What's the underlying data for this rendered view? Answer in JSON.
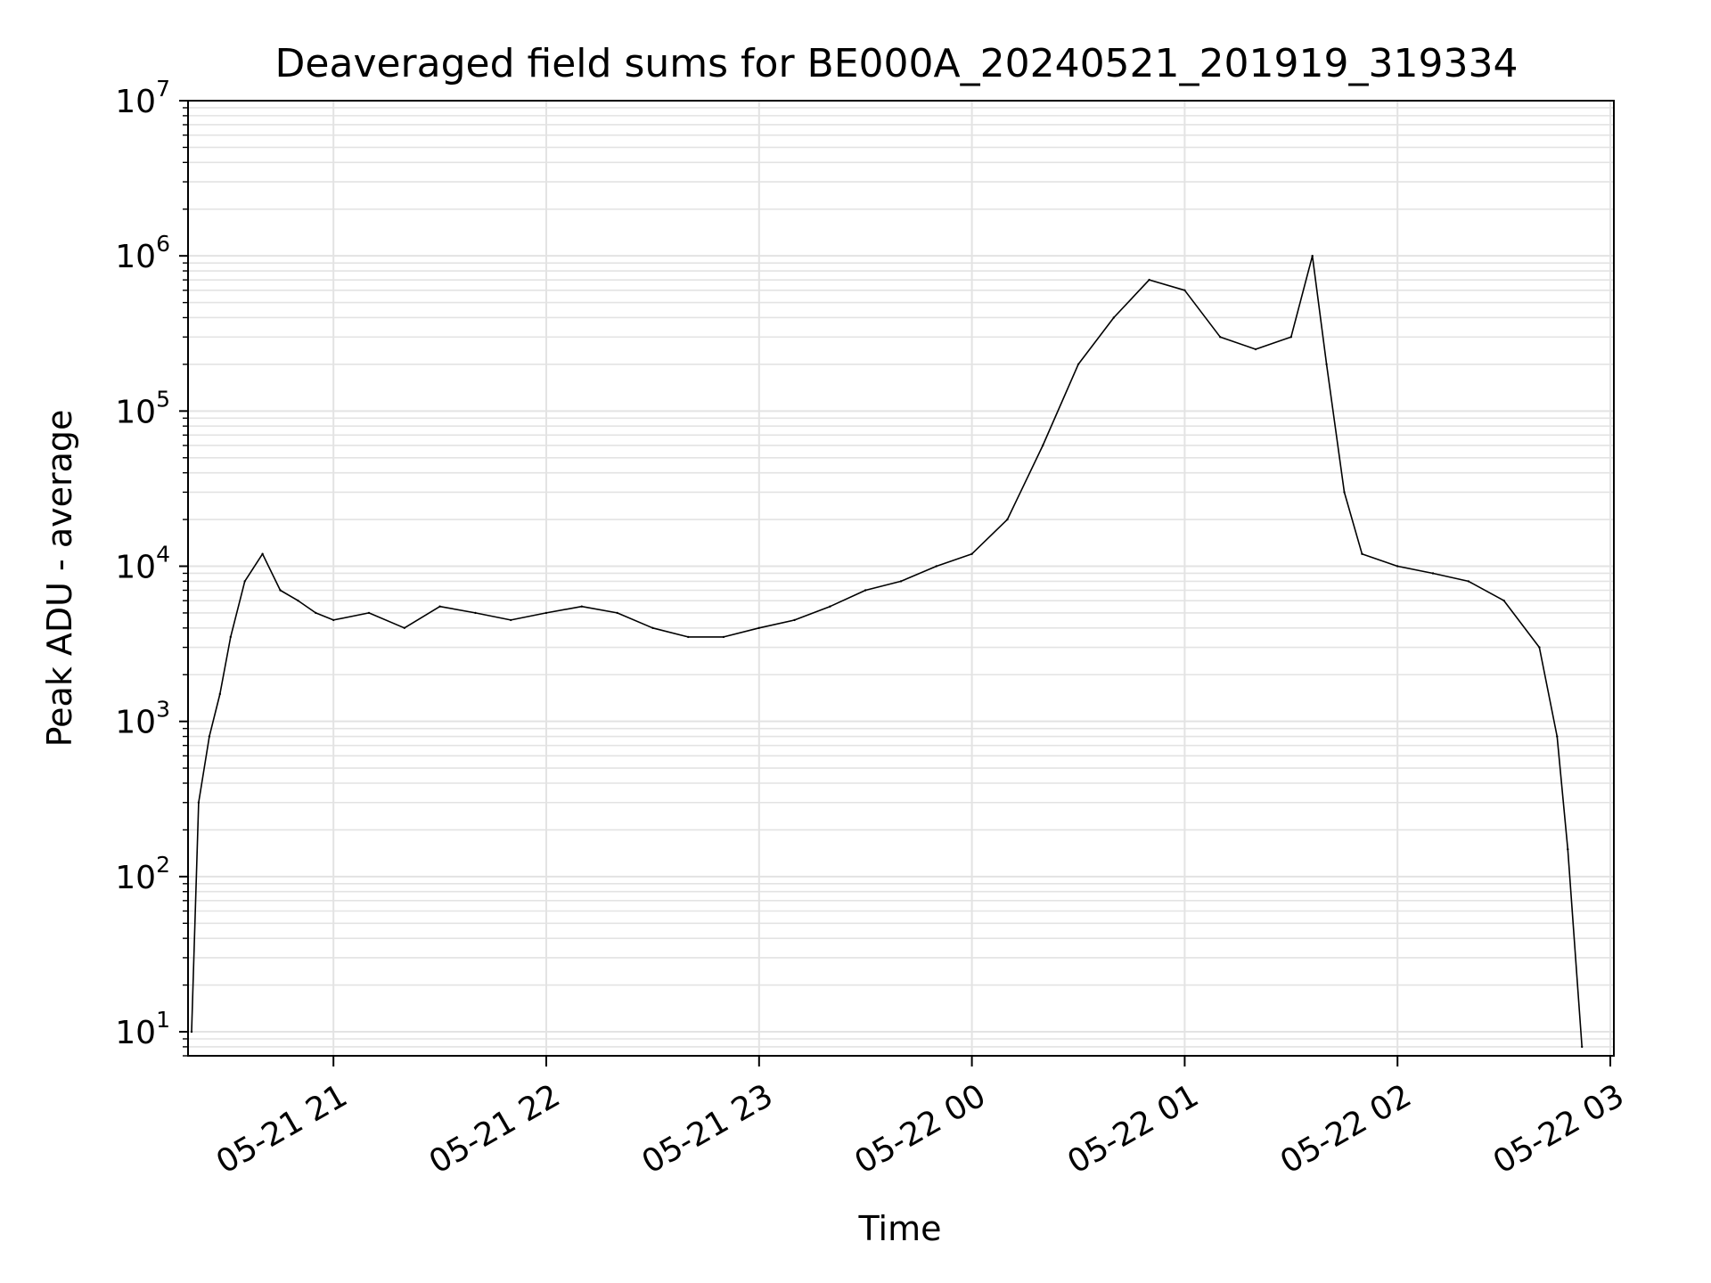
{
  "chart_data": {
    "type": "line",
    "title": "Deaveraged field sums for BE000A_20240521_201919_319334",
    "xlabel": "Time",
    "ylabel": "Peak ADU - average",
    "y_scale": "log",
    "ylim": [
      7,
      10000000
    ],
    "xlim": [
      "2024-05-21 20:19",
      "2024-05-22 03:01"
    ],
    "grid": true,
    "line_color": "#000000",
    "x_ticks": [
      "05-21 21",
      "05-21 22",
      "05-21 23",
      "05-22 00",
      "05-22 01",
      "05-22 02",
      "05-22 03"
    ],
    "y_ticks": [
      {
        "base": "10",
        "exp": "1"
      },
      {
        "base": "10",
        "exp": "2"
      },
      {
        "base": "10",
        "exp": "3"
      },
      {
        "base": "10",
        "exp": "4"
      },
      {
        "base": "10",
        "exp": "5"
      },
      {
        "base": "10",
        "exp": "6"
      },
      {
        "base": "10",
        "exp": "7"
      }
    ],
    "series": [
      {
        "points": [
          [
            "2024-05-21 20:20",
            10
          ],
          [
            "2024-05-21 20:22",
            300
          ],
          [
            "2024-05-21 20:25",
            800
          ],
          [
            "2024-05-21 20:28",
            1500
          ],
          [
            "2024-05-21 20:31",
            3500
          ],
          [
            "2024-05-21 20:35",
            8000
          ],
          [
            "2024-05-21 20:40",
            12000
          ],
          [
            "2024-05-21 20:45",
            7000
          ],
          [
            "2024-05-21 20:50",
            6000
          ],
          [
            "2024-05-21 20:55",
            5000
          ],
          [
            "2024-05-21 21:00",
            4500
          ],
          [
            "2024-05-21 21:10",
            5000
          ],
          [
            "2024-05-21 21:20",
            4000
          ],
          [
            "2024-05-21 21:30",
            5500
          ],
          [
            "2024-05-21 21:40",
            5000
          ],
          [
            "2024-05-21 21:50",
            4500
          ],
          [
            "2024-05-21 22:00",
            5000
          ],
          [
            "2024-05-21 22:10",
            5500
          ],
          [
            "2024-05-21 22:20",
            5000
          ],
          [
            "2024-05-21 22:30",
            4000
          ],
          [
            "2024-05-21 22:40",
            3500
          ],
          [
            "2024-05-21 22:50",
            3500
          ],
          [
            "2024-05-21 23:00",
            4000
          ],
          [
            "2024-05-21 23:10",
            4500
          ],
          [
            "2024-05-21 23:20",
            5500
          ],
          [
            "2024-05-21 23:30",
            7000
          ],
          [
            "2024-05-21 23:40",
            8000
          ],
          [
            "2024-05-21 23:50",
            10000
          ],
          [
            "2024-05-22 00:00",
            12000
          ],
          [
            "2024-05-22 00:10",
            20000
          ],
          [
            "2024-05-22 00:20",
            60000
          ],
          [
            "2024-05-22 00:30",
            200000
          ],
          [
            "2024-05-22 00:40",
            400000
          ],
          [
            "2024-05-22 00:50",
            700000
          ],
          [
            "2024-05-22 01:00",
            600000
          ],
          [
            "2024-05-22 01:10",
            300000
          ],
          [
            "2024-05-22 01:20",
            250000
          ],
          [
            "2024-05-22 01:30",
            300000
          ],
          [
            "2024-05-22 01:36",
            1000000
          ],
          [
            "2024-05-22 01:40",
            200000
          ],
          [
            "2024-05-22 01:45",
            30000
          ],
          [
            "2024-05-22 01:50",
            12000
          ],
          [
            "2024-05-22 02:00",
            10000
          ],
          [
            "2024-05-22 02:10",
            9000
          ],
          [
            "2024-05-22 02:20",
            8000
          ],
          [
            "2024-05-22 02:30",
            6000
          ],
          [
            "2024-05-22 02:40",
            3000
          ],
          [
            "2024-05-22 02:45",
            800
          ],
          [
            "2024-05-22 02:48",
            150
          ],
          [
            "2024-05-22 02:52",
            8
          ]
        ]
      }
    ]
  }
}
